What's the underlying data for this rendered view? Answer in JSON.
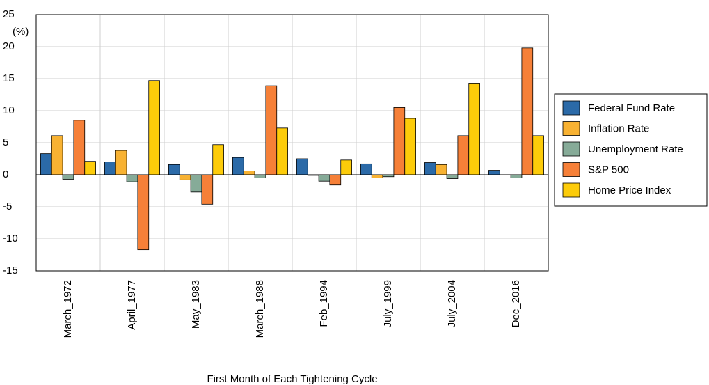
{
  "chart_data": {
    "type": "bar",
    "y_label": "(%)",
    "x_label": "First Month of Each Tightening Cycle",
    "categories": [
      "March_1972",
      "April_1977",
      "May_1983",
      "March_1988",
      "Feb_1994",
      "July_1999",
      "July_2004",
      "Dec_2016"
    ],
    "series": [
      {
        "name": "Federal Fund Rate",
        "color": "#2b6aa8",
        "values": [
          3.3,
          2.0,
          1.6,
          2.7,
          2.5,
          1.7,
          1.9,
          0.7
        ]
      },
      {
        "name": "Inflation Rate",
        "color": "#f8b232",
        "values": [
          6.1,
          3.8,
          -0.8,
          0.6,
          -0.1,
          -0.5,
          1.6,
          0.0
        ]
      },
      {
        "name": "Unemployment Rate",
        "color": "#86ab98",
        "values": [
          -0.7,
          -1.1,
          -2.7,
          -0.5,
          -1.0,
          -0.3,
          -0.6,
          -0.5
        ]
      },
      {
        "name": "S&P 500",
        "color": "#f68038",
        "values": [
          8.5,
          -11.7,
          -4.6,
          13.9,
          -1.6,
          10.5,
          6.1,
          19.8
        ]
      },
      {
        "name": "Home Price Index",
        "color": "#fdcc0a",
        "values": [
          2.1,
          14.7,
          4.7,
          7.3,
          2.3,
          8.8,
          14.3,
          6.1
        ]
      }
    ],
    "ylim": [
      -15,
      25
    ],
    "yticks": [
      -15,
      -10,
      -5,
      0,
      5,
      10,
      15,
      20,
      25
    ],
    "grid": true,
    "legend": "right"
  }
}
